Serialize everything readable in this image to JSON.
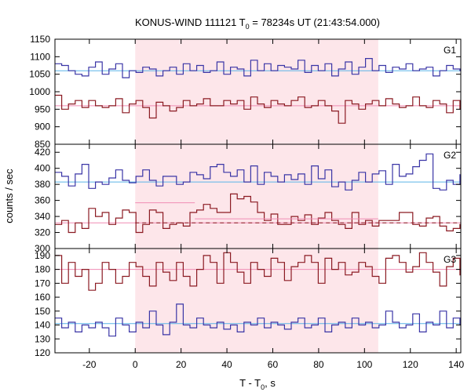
{
  "chart_data": {
    "type": "line",
    "title": {
      "prefix": "KONUS-WIND 111121 T",
      "sub": "0",
      "suffix": " = 78234s UT (21:43:54.000)"
    },
    "xlabel": {
      "prefix": "T - T",
      "sub": "0",
      "suffix": ", s"
    },
    "ylabel": "counts / sec",
    "xlim": [
      -35,
      142
    ],
    "xticks": [
      -20,
      0,
      20,
      40,
      60,
      80,
      100,
      120,
      140
    ],
    "highlight_interval": [
      0,
      106
    ],
    "colors": {
      "blue": "#3a35a6",
      "red": "#8b1a22",
      "cyan": "#5ab4e8",
      "pink": "#f08cb4",
      "band": "#fde6ea"
    },
    "panels": [
      {
        "name": "G1",
        "ylim": [
          850,
          1150
        ],
        "yticks": [
          850,
          900,
          950,
          1000,
          1050,
          1100,
          1150
        ],
        "series": [
          {
            "color": "blue",
            "background": 1060,
            "x_start": -35,
            "step": 2.944,
            "values": [
              1080,
              1075,
              1060,
              1050,
              1045,
              1070,
              1085,
              1050,
              1065,
              1080,
              1040,
              1060,
              1055,
              1070,
              1065,
              1045,
              1060,
              1070,
              1050,
              1080,
              1060,
              1075,
              1055,
              1060,
              1085,
              1050,
              1070,
              1065,
              1045,
              1090,
              1060,
              1080,
              1060,
              1075,
              1070,
              1065,
              1090,
              1055,
              1075,
              1060,
              1080,
              1045,
              1065,
              1085,
              1050,
              1070,
              1095,
              1060,
              1075,
              1055,
              1070,
              1065,
              1080,
              1060,
              1065,
              1070,
              1045,
              1060,
              1075,
              1065,
              1060
            ]
          },
          {
            "color": "red",
            "background": 960,
            "x_start": -35,
            "step": 2.944,
            "values": [
              990,
              950,
              965,
              975,
              955,
              975,
              960,
              955,
              960,
              980,
              940,
              965,
              975,
              955,
              925,
              970,
              960,
              945,
              955,
              975,
              960,
              965,
              980,
              960,
              960,
              975,
              965,
              975,
              950,
              985,
              965,
              955,
              975,
              965,
              960,
              975,
              985,
              955,
              960,
              975,
              960,
              945,
              910,
              975,
              965,
              950,
              965,
              975,
              960,
              980,
              965,
              955,
              960,
              985,
              960,
              955,
              975,
              965,
              940,
              975,
              950
            ]
          }
        ]
      },
      {
        "name": "G2",
        "ylim": [
          300,
          430
        ],
        "yticks": [
          300,
          320,
          340,
          360,
          380,
          400,
          420
        ],
        "series": [
          {
            "color": "blue",
            "background": 383,
            "x_start": -35,
            "step": 2.944,
            "values": [
              395,
              390,
              378,
              393,
              405,
              375,
              383,
              380,
              388,
              398,
              385,
              382,
              390,
              398,
              385,
              378,
              390,
              390,
              380,
              383,
              395,
              392,
              387,
              402,
              405,
              395,
              390,
              398,
              383,
              403,
              380,
              395,
              390,
              383,
              392,
              386,
              393,
              380,
              403,
              387,
              398,
              377,
              383,
              373,
              385,
              395,
              383,
              393,
              397,
              380,
              405,
              390,
              393,
              402,
              410,
              418,
              375,
              373,
              385,
              380,
              392
            ]
          },
          {
            "color": "red",
            "background": 332,
            "x_start": -35,
            "step": 2.944,
            "values": [
              330,
              335,
              320,
              332,
              325,
              350,
              340,
              345,
              330,
              338,
              348,
              345,
              320,
              330,
              348,
              345,
              325,
              330,
              332,
              328,
              345,
              348,
              355,
              350,
              345,
              345,
              368,
              362,
              365,
              358,
              345,
              335,
              343,
              330,
              330,
              340,
              335,
              342,
              330,
              338,
              345,
              335,
              330,
              325,
              345,
              330,
              335,
              328,
              335,
              335,
              335,
              345,
              345,
              330,
              328,
              338,
              340,
              328,
              322,
              325,
              330
            ]
          }
        ],
        "mean_steps": [
          {
            "color": "pink",
            "x0": 0,
            "x1": 26,
            "y": 357
          },
          {
            "color": "pink",
            "x0": 26,
            "x1": 106,
            "y": 337
          }
        ]
      },
      {
        "name": "G3",
        "ylim": [
          120,
          195
        ],
        "yticks": [
          120,
          130,
          140,
          150,
          160,
          170,
          180,
          190
        ],
        "series": [
          {
            "color": "red",
            "background": 180,
            "x_start": -35,
            "step": 2.944,
            "values": [
              190,
              170,
              185,
              175,
              180,
              165,
              170,
              185,
              180,
              170,
              175,
              185,
              182,
              175,
              168,
              185,
              178,
              172,
              185,
              175,
              168,
              180,
              190,
              185,
              170,
              192,
              185,
              178,
              170,
              185,
              180,
              175,
              188,
              185,
              172,
              182,
              185,
              190,
              185,
              170,
              188,
              180,
              185,
              176,
              178,
              185,
              182,
              175,
              170,
              188,
              190,
              185,
              178,
              182,
              192,
              185,
              178,
              168,
              182,
              188,
              176
            ]
          },
          {
            "color": "blue",
            "background": 141,
            "x_start": -35,
            "step": 2.944,
            "values": [
              145,
              138,
              142,
              135,
              140,
              138,
              142,
              138,
              132,
              145,
              140,
              135,
              142,
              138,
              150,
              140,
              133,
              142,
              155,
              140,
              138,
              145,
              140,
              138,
              142,
              137,
              140,
              135,
              142,
              140,
              145,
              138,
              142,
              140,
              137,
              142,
              145,
              138,
              140,
              145,
              135,
              140,
              142,
              138,
              145,
              140,
              142,
              138,
              140,
              150,
              142,
              138,
              140,
              148,
              135,
              142,
              140,
              150,
              138,
              145,
              140
            ]
          }
        ]
      }
    ]
  }
}
